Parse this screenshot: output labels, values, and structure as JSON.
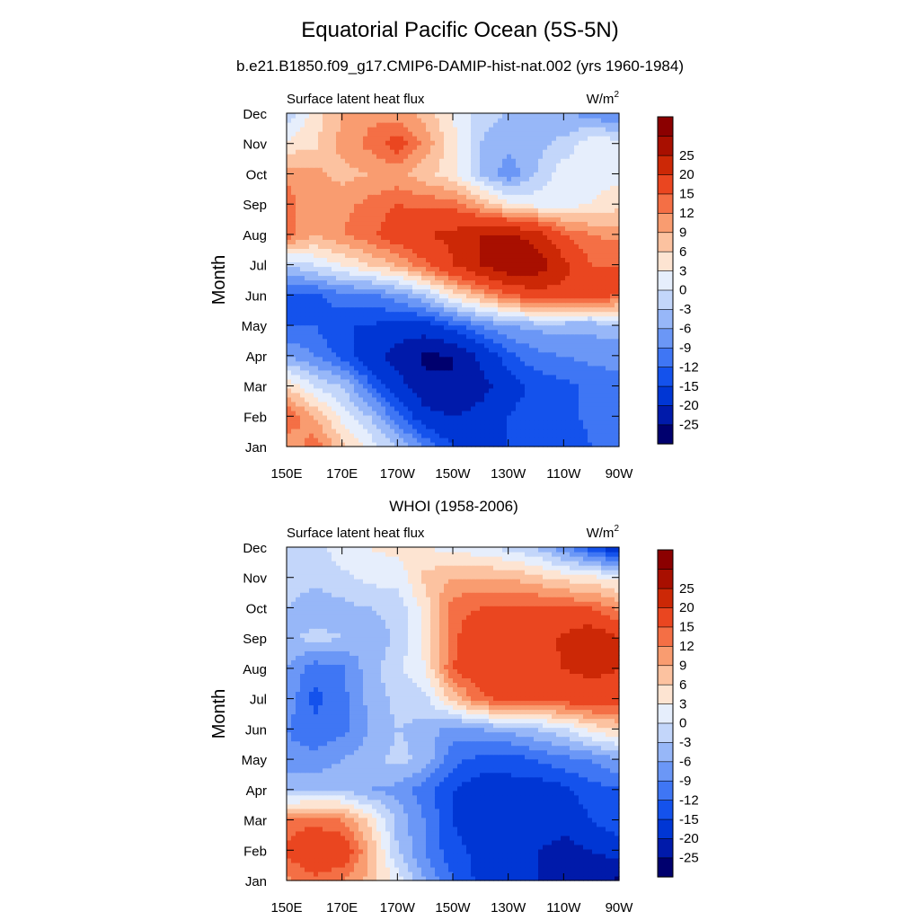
{
  "title": "Equatorial Pacific Ocean (5S-5N)",
  "subtitle": "b.e21.B1850.f09_g17.CMIP6-DAMIP-hist-nat.002 (yrs 1960-1984)",
  "panel2_title": "WHOI (1958-2006)",
  "colors": {
    "levels": [
      -30,
      -25,
      -20,
      -15,
      -12,
      -9,
      -6,
      -3,
      0,
      3,
      6,
      9,
      12,
      15,
      20,
      25,
      30
    ],
    "fills": [
      "#00006e",
      "#001aaa",
      "#0036d4",
      "#1452ec",
      "#3f76f4",
      "#6b97f6",
      "#97b7f8",
      "#c3d6fa",
      "#e6eefc",
      "#fde4d2",
      "#fcc2a0",
      "#f99c70",
      "#f46f45",
      "#ea4620",
      "#cc2806",
      "#a80f00",
      "#8b0000"
    ]
  },
  "chart_data": [
    {
      "type": "heatmap",
      "panel_title": "",
      "left_label": "Surface latent heat flux",
      "units": "W/m",
      "units_sup": "2",
      "ylabel": "Month",
      "xlabel": "",
      "xticks": [
        "150E",
        "170E",
        "170W",
        "150W",
        "130W",
        "110W",
        "90W"
      ],
      "yticks": [
        "Jan",
        "Feb",
        "Mar",
        "Apr",
        "May",
        "Jun",
        "Jul",
        "Aug",
        "Sep",
        "Oct",
        "Nov",
        "Dec"
      ],
      "x_range": [
        "150E",
        "90W"
      ],
      "colorbar_labels": [
        "-25",
        "-20",
        "-15",
        "-12",
        "-9",
        "-6",
        "-3",
        "0",
        "3",
        "6",
        "9",
        "12",
        "15",
        "20",
        "25"
      ],
      "x": [
        "150E",
        "160E",
        "170E",
        "180",
        "170W",
        "160W",
        "150W",
        "140W",
        "130W",
        "120W",
        "110W",
        "100W",
        "90W"
      ],
      "y": [
        "Jan",
        "Feb",
        "Mar",
        "Apr",
        "May",
        "Jun",
        "Jul",
        "Aug",
        "Sep",
        "Oct",
        "Nov",
        "Dec"
      ],
      "z": [
        [
          9,
          14,
          7,
          2,
          -3,
          -9,
          -15,
          -15,
          -15,
          -13,
          -15,
          -12,
          -12
        ],
        [
          15,
          9,
          2,
          -3,
          -11,
          -18,
          -20,
          -18,
          -15,
          -13,
          -13,
          -11,
          -11
        ],
        [
          6,
          0,
          -3,
          -11,
          -18,
          -24,
          -25,
          -22,
          -17,
          -14,
          -13,
          -11,
          -10
        ],
        [
          -6,
          -9,
          -13,
          -18,
          -22,
          -26,
          -25,
          -19,
          -13,
          -10,
          -9,
          -8,
          -8
        ],
        [
          -12,
          -12,
          -15,
          -15,
          -17,
          -17,
          -13,
          -9,
          -6,
          -5,
          -5,
          -5,
          -4
        ],
        [
          -12,
          -13,
          -10,
          -10,
          -7,
          -3,
          4,
          9,
          14,
          18,
          18,
          16,
          15
        ],
        [
          -3,
          0,
          3,
          6,
          9,
          14,
          20,
          25,
          30,
          28,
          22,
          15,
          15
        ],
        [
          14,
          9,
          12,
          14,
          18,
          20,
          21,
          25,
          26,
          23,
          15,
          12,
          11
        ],
        [
          14,
          9,
          11,
          13,
          15,
          14,
          14,
          9,
          4,
          2,
          2,
          3,
          5
        ],
        [
          11,
          10,
          8,
          9,
          10,
          7,
          4,
          -3,
          -8,
          -3,
          2,
          2,
          2
        ],
        [
          4,
          5,
          10,
          13,
          17,
          11,
          4,
          -3,
          -5,
          -4,
          -2,
          2,
          2
        ],
        [
          -3,
          5,
          9,
          11,
          10,
          8,
          3,
          -2,
          -3,
          -3,
          -6,
          -7,
          -10
        ]
      ]
    },
    {
      "type": "heatmap",
      "panel_title": "WHOI (1958-2006)",
      "left_label": "Surface latent heat flux",
      "units": "W/m",
      "units_sup": "2",
      "ylabel": "Month",
      "xlabel": "",
      "xticks": [
        "150E",
        "170E",
        "170W",
        "150W",
        "130W",
        "110W",
        "90W"
      ],
      "yticks": [
        "Jan",
        "Feb",
        "Mar",
        "Apr",
        "May",
        "Jun",
        "Jul",
        "Aug",
        "Sep",
        "Oct",
        "Nov",
        "Dec"
      ],
      "x_range": [
        "150E",
        "90W"
      ],
      "colorbar_labels": [
        "-25",
        "-20",
        "-15",
        "-12",
        "-9",
        "-6",
        "-3",
        "0",
        "3",
        "6",
        "9",
        "12",
        "15",
        "20",
        "25"
      ],
      "x": [
        "150E",
        "160E",
        "170E",
        "180",
        "170W",
        "160W",
        "150W",
        "140W",
        "130W",
        "120W",
        "110W",
        "100W",
        "90W"
      ],
      "y": [
        "Jan",
        "Feb",
        "Mar",
        "Apr",
        "May",
        "Jun",
        "Jul",
        "Aug",
        "Sep",
        "Oct",
        "Nov",
        "Dec"
      ],
      "z": [
        [
          11,
          14,
          12,
          8,
          2,
          -6,
          -12,
          -16,
          -18,
          -20,
          -22,
          -24,
          -26
        ],
        [
          16,
          19,
          19,
          9,
          -3,
          -9,
          -14,
          -16,
          -18,
          -20,
          -22,
          -20,
          -18
        ],
        [
          13,
          14,
          12,
          5,
          -4,
          -9,
          -15,
          -18,
          -16,
          -16,
          -18,
          -15,
          -12
        ],
        [
          -4,
          -4,
          -3,
          -6,
          -7,
          -11,
          -15,
          -17,
          -16,
          -17,
          -16,
          -13,
          -13
        ],
        [
          -8,
          -8,
          -6,
          -4,
          -2,
          -4,
          -11,
          -13,
          -14,
          -12,
          -10,
          -9,
          -6
        ],
        [
          -9,
          -11,
          -10,
          -6,
          -3,
          -4,
          -8,
          -6,
          -5,
          -3,
          -1,
          4,
          6
        ],
        [
          -7,
          -13,
          -10,
          -5,
          -2,
          -1,
          7,
          14,
          16,
          16,
          17,
          18,
          18
        ],
        [
          -6,
          -11,
          -10,
          -4,
          -1,
          3,
          15,
          19,
          20,
          18,
          20,
          21,
          20
        ],
        [
          -4,
          -2,
          -3,
          -6,
          -2,
          4,
          14,
          19,
          20,
          17,
          21,
          24,
          20
        ],
        [
          -3,
          -5,
          -4,
          -3,
          -2,
          4,
          14,
          15,
          16,
          16,
          15,
          15,
          11
        ],
        [
          -1,
          -2,
          -1,
          1,
          1,
          7,
          9,
          9,
          9,
          7,
          5,
          4,
          2
        ],
        [
          -2,
          -2,
          2,
          3,
          4,
          3,
          2,
          1,
          -1,
          -3,
          -8,
          -14,
          -19
        ]
      ]
    }
  ]
}
